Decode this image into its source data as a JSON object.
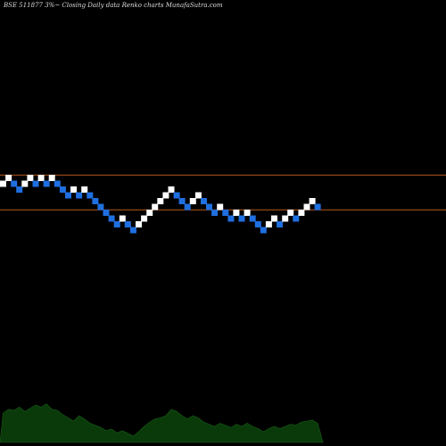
{
  "chart_data": {
    "type": "renko",
    "title": "BSE 511877 3%~  Closing Daily data  Renko  charts MunafaSutra.com",
    "colors": {
      "up_brick": "#ffffff",
      "down_brick": "#1f6fe0",
      "reference_line": "#b85a1c",
      "volume_area": "#0a3a0a",
      "volume_labels": "#e8e8e8"
    },
    "bricks": [
      {
        "level": 2,
        "dir": "up"
      },
      {
        "level": 3,
        "dir": "up"
      },
      {
        "level": 2,
        "dir": "down"
      },
      {
        "level": 1,
        "dir": "down"
      },
      {
        "level": 2,
        "dir": "up"
      },
      {
        "level": 3,
        "dir": "up"
      },
      {
        "level": 2,
        "dir": "down"
      },
      {
        "level": 3,
        "dir": "up"
      },
      {
        "level": 2,
        "dir": "down"
      },
      {
        "level": 3,
        "dir": "up"
      },
      {
        "level": 2,
        "dir": "down"
      },
      {
        "level": 1,
        "dir": "down"
      },
      {
        "level": 0,
        "dir": "down"
      },
      {
        "level": 1,
        "dir": "up"
      },
      {
        "level": 0,
        "dir": "down"
      },
      {
        "level": 1,
        "dir": "up"
      },
      {
        "level": 0,
        "dir": "down"
      },
      {
        "level": -1,
        "dir": "down"
      },
      {
        "level": -2,
        "dir": "down"
      },
      {
        "level": -3,
        "dir": "down"
      },
      {
        "level": -4,
        "dir": "down"
      },
      {
        "level": -5,
        "dir": "down"
      },
      {
        "level": -4,
        "dir": "up"
      },
      {
        "level": -5,
        "dir": "down"
      },
      {
        "level": -6,
        "dir": "down"
      },
      {
        "level": -5,
        "dir": "up"
      },
      {
        "level": -4,
        "dir": "up"
      },
      {
        "level": -3,
        "dir": "up"
      },
      {
        "level": -2,
        "dir": "up"
      },
      {
        "level": -1,
        "dir": "up"
      },
      {
        "level": 0,
        "dir": "up"
      },
      {
        "level": 1,
        "dir": "up"
      },
      {
        "level": 0,
        "dir": "down"
      },
      {
        "level": -1,
        "dir": "down"
      },
      {
        "level": -2,
        "dir": "down"
      },
      {
        "level": -1,
        "dir": "up"
      },
      {
        "level": 0,
        "dir": "up"
      },
      {
        "level": -1,
        "dir": "down"
      },
      {
        "level": -2,
        "dir": "down"
      },
      {
        "level": -3,
        "dir": "down"
      },
      {
        "level": -2,
        "dir": "up"
      },
      {
        "level": -3,
        "dir": "down"
      },
      {
        "level": -4,
        "dir": "down"
      },
      {
        "level": -3,
        "dir": "up"
      },
      {
        "level": -4,
        "dir": "down"
      },
      {
        "level": -3,
        "dir": "up"
      },
      {
        "level": -4,
        "dir": "down"
      },
      {
        "level": -5,
        "dir": "down"
      },
      {
        "level": -6,
        "dir": "down"
      },
      {
        "level": -5,
        "dir": "up"
      },
      {
        "level": -4,
        "dir": "up"
      },
      {
        "level": -5,
        "dir": "down"
      },
      {
        "level": -4,
        "dir": "up"
      },
      {
        "level": -3,
        "dir": "up"
      },
      {
        "level": -4,
        "dir": "down"
      },
      {
        "level": -3,
        "dir": "up"
      },
      {
        "level": -2,
        "dir": "up"
      },
      {
        "level": -1,
        "dir": "up"
      },
      {
        "level": -2,
        "dir": "down"
      }
    ],
    "reference_lines": [
      {
        "level": 3.5
      },
      {
        "level": -2.5
      }
    ],
    "volume_profile": [
      0.55,
      0.62,
      0.6,
      0.66,
      0.58,
      0.64,
      0.7,
      0.66,
      0.72,
      0.62,
      0.6,
      0.52,
      0.46,
      0.4,
      0.5,
      0.44,
      0.36,
      0.32,
      0.28,
      0.22,
      0.25,
      0.18,
      0.22,
      0.17,
      0.12,
      0.2,
      0.3,
      0.38,
      0.44,
      0.46,
      0.5,
      0.62,
      0.58,
      0.5,
      0.44,
      0.5,
      0.46,
      0.38,
      0.34,
      0.3,
      0.36,
      0.32,
      0.28,
      0.34,
      0.3,
      0.36,
      0.3,
      0.26,
      0.2,
      0.26,
      0.3,
      0.26,
      0.3,
      0.34,
      0.32,
      0.38,
      0.4,
      0.42,
      0.36
    ]
  }
}
